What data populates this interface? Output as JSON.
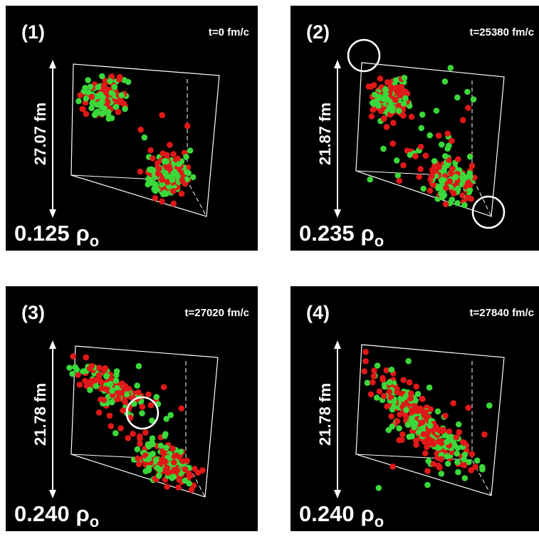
{
  "panels": [
    {
      "label": "(1)",
      "time": "t=0 fm/c",
      "size": "27.07 fm",
      "density": "0.125",
      "unit": "ρ",
      "unit_sub": "o"
    },
    {
      "label": "(2)",
      "time": "t=25380 fm/c",
      "size": "21.87 fm",
      "density": "0.235",
      "unit": "ρ",
      "unit_sub": "o"
    },
    {
      "label": "(3)",
      "time": "t=27020 fm/c",
      "size": "21.78 fm",
      "density": "0.240",
      "unit": "ρ",
      "unit_sub": "o"
    },
    {
      "label": "(4)",
      "time": "t=27840 fm/c",
      "size": "21.78 fm",
      "density": "0.240",
      "unit": "ρ",
      "unit_sub": "o"
    }
  ]
}
